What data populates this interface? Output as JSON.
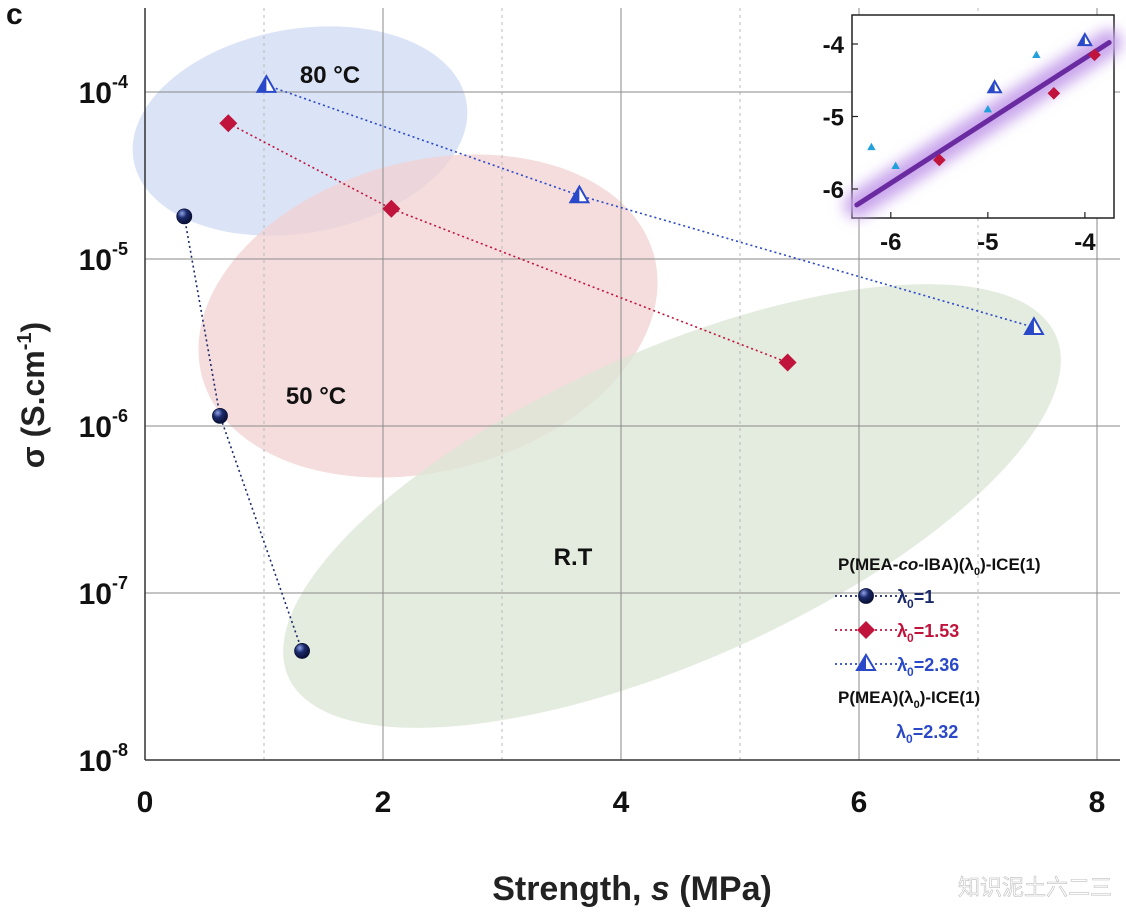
{
  "panel_label": "c",
  "watermark": "知识泥土六二三",
  "colors": {
    "lambda1": "#1b2a6b",
    "lambda153": "#c0143c",
    "lambda236": "#2a49c9",
    "lambda236_fill": "#ffffff",
    "region_80": "#cfdaf3",
    "region_50": "#f2d2d2",
    "region_rt": "#dbe6d4",
    "fit_line": "#6a2aa0",
    "fit_glow": "#c9a6ec"
  },
  "chart_data": [
    {
      "type": "scatter",
      "xlabel": "Strength, s (MPa)",
      "xlabel_parts": {
        "prefix": "Strength, ",
        "italic": "s",
        "suffix": " (MPa)"
      },
      "ylabel": "σ (S.cm-1)",
      "ylabel_parts": {
        "prefix": "σ (S.cm",
        "sup": "-1",
        "suffix": ")"
      },
      "y_scale": "log",
      "xlim": [
        0,
        8
      ],
      "ylim": [
        1e-08,
        0.0003
      ],
      "x_ticks": [
        "0",
        "2",
        "4",
        "6",
        "8"
      ],
      "y_ticks": [
        {
          "base": "10",
          "exp": "-4"
        },
        {
          "base": "10",
          "exp": "-5"
        },
        {
          "base": "10",
          "exp": "-6"
        },
        {
          "base": "10",
          "exp": "-7"
        },
        {
          "base": "10",
          "exp": "-8"
        }
      ],
      "grid": true,
      "legend_position": "bottom-right",
      "legend_title": "P(MEA-co-IBA)(λ0)-ICE(1)",
      "legend_title_parts": {
        "a": "P(MEA-",
        "italic": "co",
        "b": "-IBA)(λ",
        "sub": "0",
        "c": ")-ICE(1)"
      },
      "legend_subtitle": "P(MEA)(λ0)-ICE(1)",
      "legend_subtitle_parts": {
        "a": "P(MEA)(λ",
        "sub": "0",
        "c": ")-ICE(1)"
      },
      "legend_extra": {
        "name": "λ0=2.32",
        "lead": "λ",
        "sub": "0",
        "rest": "=2.32"
      },
      "series": [
        {
          "name": "λ0=1",
          "label_lead": "λ",
          "label_sub": "0",
          "label_rest": "=1",
          "marker": "sphere",
          "color_key": "lambda1",
          "points": [
            {
              "x": 0.33,
              "y": 1.8e-05
            },
            {
              "x": 0.63,
              "y": 1.15e-06
            },
            {
              "x": 1.32,
              "y": 4.5e-08
            }
          ]
        },
        {
          "name": "λ0=1.53",
          "label_lead": "λ",
          "label_sub": "0",
          "label_rest": "=1.53",
          "marker": "diamond",
          "color_key": "lambda153",
          "points": [
            {
              "x": 0.7,
              "y": 6.5e-05
            },
            {
              "x": 2.07,
              "y": 2e-05
            },
            {
              "x": 5.4,
              "y": 2.4e-06
            }
          ]
        },
        {
          "name": "λ0=2.36",
          "label_lead": "λ",
          "label_sub": "0",
          "label_rest": "=2.36",
          "marker": "triangle",
          "color_key": "lambda236",
          "points": [
            {
              "x": 1.02,
              "y": 0.00011
            },
            {
              "x": 3.65,
              "y": 2.4e-05
            },
            {
              "x": 7.47,
              "y": 3.9e-06
            }
          ]
        }
      ],
      "regions": [
        {
          "label": "80 °C",
          "color_key": "region_80"
        },
        {
          "label": "50 °C",
          "color_key": "region_50"
        },
        {
          "label": "R.T",
          "color_key": "region_rt"
        }
      ]
    },
    {
      "type": "scatter",
      "role": "inset",
      "xlim": [
        -6.4,
        -3.7
      ],
      "ylim": [
        -6.4,
        -3.6
      ],
      "x_ticks": [
        "-6",
        "-5",
        "-4"
      ],
      "y_ticks": [
        "-4",
        "-5",
        "-6"
      ],
      "grid": false,
      "series": [
        {
          "marker": "triangle-light",
          "color": "#22a0dc",
          "points": [
            {
              "x": -6.2,
              "y": -5.42
            },
            {
              "x": -5.95,
              "y": -5.68
            },
            {
              "x": -5.0,
              "y": -4.9
            },
            {
              "x": -4.5,
              "y": -4.15
            }
          ]
        },
        {
          "marker": "triangle",
          "color_key": "lambda236",
          "points": [
            {
              "x": -4.93,
              "y": -4.6
            },
            {
              "x": -4.0,
              "y": -3.95
            }
          ]
        },
        {
          "marker": "diamond",
          "color_key": "lambda153",
          "points": [
            {
              "x": -5.5,
              "y": -5.6
            },
            {
              "x": -4.32,
              "y": -4.68
            },
            {
              "x": -3.9,
              "y": -4.15
            }
          ]
        }
      ],
      "fit_line": {
        "x": [
          -6.35,
          -3.75
        ],
        "y": [
          -6.22,
          -3.98
        ]
      }
    }
  ]
}
